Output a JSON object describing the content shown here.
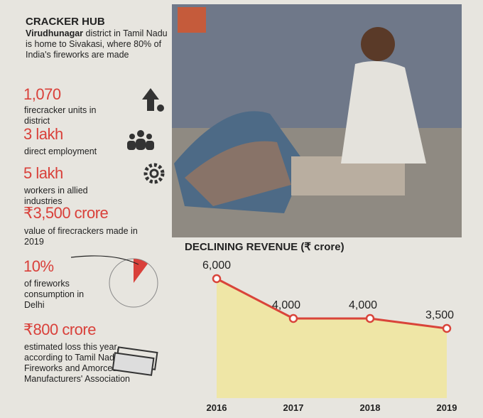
{
  "header": {
    "title": "CRACKER HUB",
    "intro_bold": "Virudhunagar",
    "intro_rest": "district in Tamil Nadu is home to Sivakasi, where 80% of India's fireworks are made"
  },
  "stats": [
    {
      "figure": "1,070",
      "caption": "firecracker units in district"
    },
    {
      "figure": "3 lakh",
      "caption": "direct employment"
    },
    {
      "figure": "5 lakh",
      "caption": "workers in allied industries"
    },
    {
      "figure": "₹3,500 crore",
      "caption": "value of firecrackers made in 2019"
    },
    {
      "figure": "10%",
      "caption": "of fireworks consumption in Delhi"
    },
    {
      "figure": "₹800 crore",
      "caption": "estimated loss this year, according to Tamil Nadu Fireworks and Amorces Manufacturers' Association"
    }
  ],
  "chart_data": {
    "type": "line",
    "title": "DECLINING REVENUE (₹ crore)",
    "categories": [
      "2016",
      "2017",
      "2018",
      "2019"
    ],
    "values": [
      6000,
      4000,
      4000,
      3500
    ],
    "value_labels": [
      "6,000",
      "4,000",
      "4,000",
      "3,500"
    ],
    "color": "#d9443a",
    "fill": "#efe6a6"
  }
}
